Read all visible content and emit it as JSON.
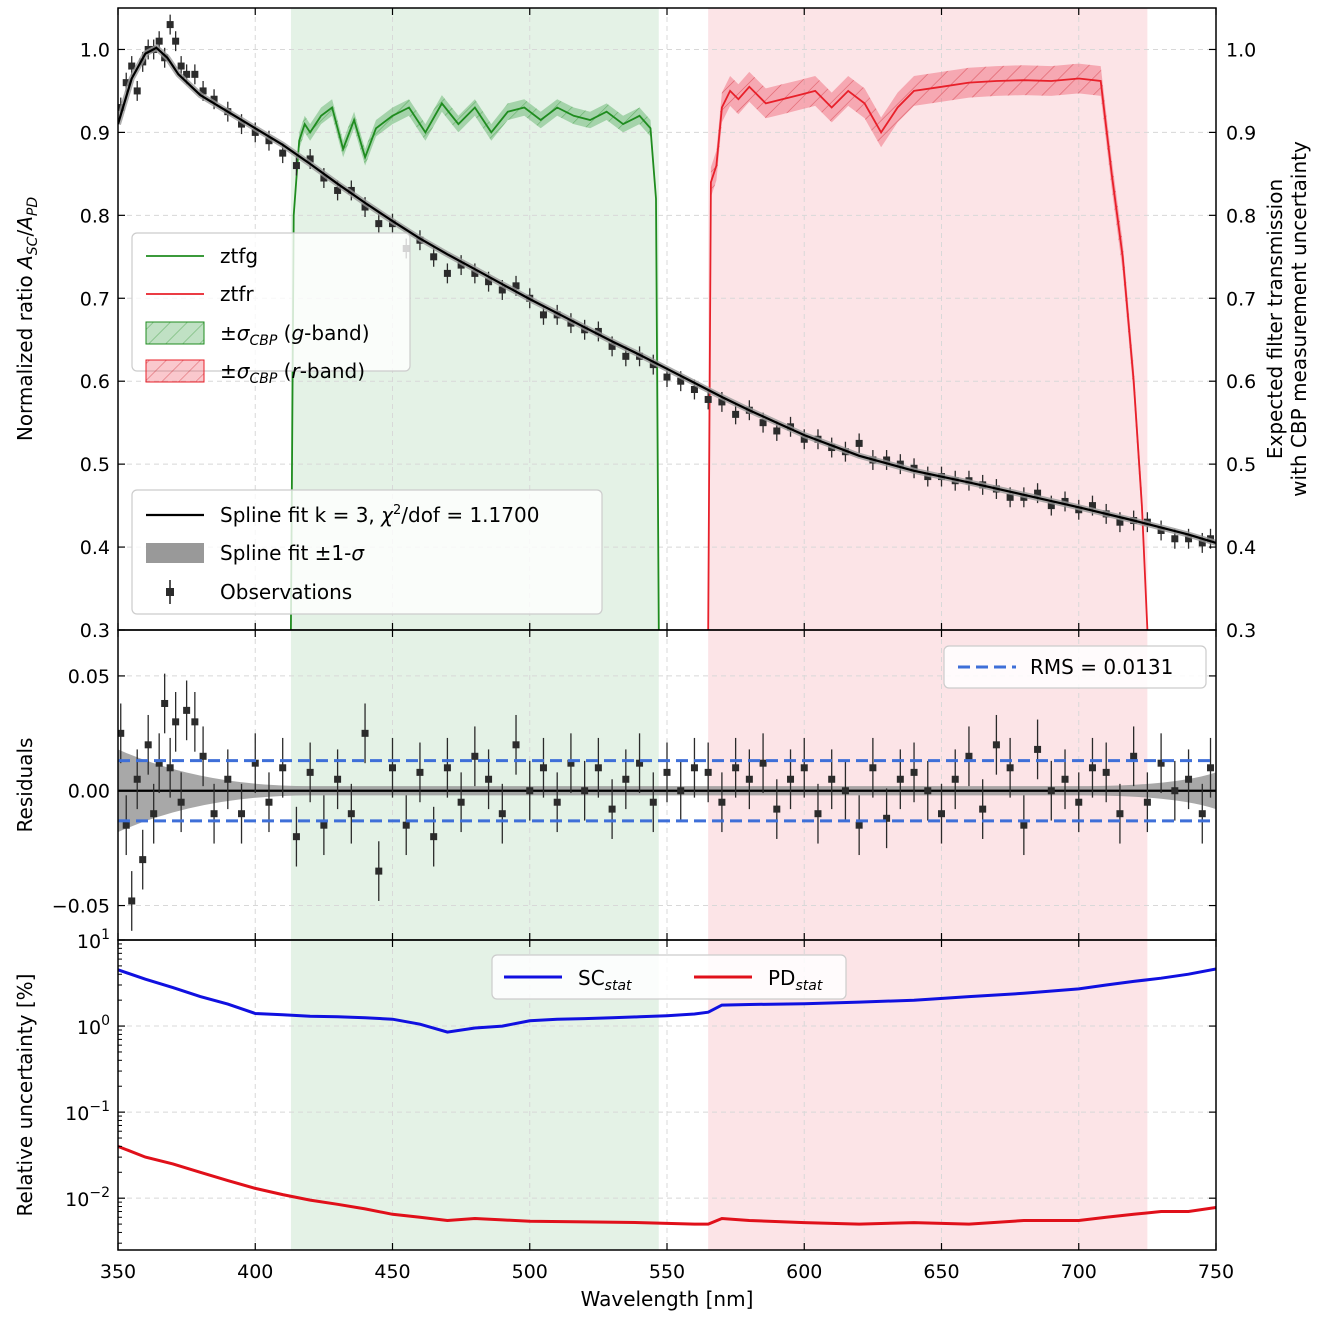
{
  "chart_data": [
    {
      "type": "scatter",
      "panel": "top",
      "ylabel": "Normalized ratio A_SC/A_PD",
      "ylabel_parts": [
        "Normalized ratio ",
        "A",
        "SC",
        "/",
        "A",
        "PD"
      ],
      "y2label_lines": [
        "Expected filter transmission",
        "with CBP measurement uncertainty"
      ],
      "xlim": [
        350,
        750
      ],
      "ylim": [
        0.3,
        1.05
      ],
      "y2lim": [
        0.3,
        1.05
      ],
      "yticks": [
        "0.3",
        "0.4",
        "0.5",
        "0.6",
        "0.7",
        "0.8",
        "0.9",
        "1.0"
      ],
      "y2ticks": [
        "0.3",
        "0.4",
        "0.5",
        "0.6",
        "0.7",
        "0.8",
        "0.9",
        "1.0"
      ],
      "grid": true,
      "colors": {
        "ztfg": "#1f8c1f",
        "ztfr": "#e8202a",
        "g_fill": "#2e9a3a",
        "r_fill": "#f06070",
        "obs": "#2b2b2b",
        "fit": "#000000"
      },
      "fit_curve": {
        "x": [
          350,
          355,
          360,
          364,
          368,
          372,
          380,
          390,
          400,
          410,
          420,
          430,
          440,
          450,
          460,
          470,
          480,
          490,
          500,
          510,
          520,
          530,
          540,
          550,
          560,
          570,
          580,
          590,
          600,
          620,
          640,
          660,
          680,
          700,
          720,
          740,
          750
        ],
        "y": [
          0.91,
          0.965,
          0.995,
          1.002,
          0.99,
          0.97,
          0.945,
          0.925,
          0.905,
          0.885,
          0.862,
          0.838,
          0.815,
          0.793,
          0.772,
          0.753,
          0.735,
          0.717,
          0.699,
          0.682,
          0.665,
          0.648,
          0.632,
          0.615,
          0.598,
          0.581,
          0.565,
          0.55,
          0.535,
          0.51,
          0.492,
          0.478,
          0.463,
          0.448,
          0.432,
          0.415,
          0.405
        ]
      },
      "ztfg_curve": {
        "x": [
          413,
          414,
          416,
          418,
          420,
          424,
          428,
          432,
          436,
          440,
          444,
          450,
          456,
          462,
          468,
          474,
          480,
          486,
          492,
          498,
          504,
          510,
          516,
          522,
          528,
          534,
          540,
          544,
          546,
          547
        ],
        "y": [
          0.3,
          0.8,
          0.89,
          0.91,
          0.9,
          0.92,
          0.93,
          0.88,
          0.915,
          0.87,
          0.905,
          0.92,
          0.93,
          0.9,
          0.935,
          0.91,
          0.93,
          0.9,
          0.925,
          0.93,
          0.915,
          0.93,
          0.92,
          0.915,
          0.925,
          0.91,
          0.92,
          0.905,
          0.82,
          0.3
        ]
      },
      "ztfg_band": 0.01,
      "ztfr_curve": {
        "x": [
          565,
          566,
          568,
          570,
          573,
          576,
          580,
          586,
          592,
          598,
          604,
          610,
          616,
          622,
          628,
          634,
          640,
          650,
          660,
          670,
          680,
          690,
          700,
          708,
          712,
          716,
          720,
          723,
          725
        ],
        "y": [
          0.3,
          0.84,
          0.86,
          0.93,
          0.95,
          0.94,
          0.955,
          0.935,
          0.94,
          0.945,
          0.95,
          0.93,
          0.95,
          0.935,
          0.9,
          0.93,
          0.95,
          0.955,
          0.96,
          0.962,
          0.963,
          0.962,
          0.965,
          0.962,
          0.85,
          0.75,
          0.6,
          0.45,
          0.3
        ]
      },
      "ztfr_band": 0.018,
      "g_band_region": [
        413,
        547
      ],
      "r_band_region": [
        565,
        725
      ],
      "observations": {
        "x": [
          351,
          353,
          355,
          357,
          359,
          361,
          363,
          365,
          367,
          369,
          371,
          373,
          375,
          378,
          381,
          385,
          390,
          395,
          400,
          405,
          410,
          415,
          420,
          425,
          430,
          435,
          440,
          445,
          450,
          455,
          460,
          465,
          470,
          475,
          480,
          485,
          490,
          495,
          500,
          505,
          510,
          515,
          520,
          525,
          530,
          535,
          540,
          545,
          550,
          555,
          560,
          565,
          570,
          575,
          580,
          585,
          590,
          595,
          600,
          605,
          610,
          615,
          620,
          625,
          630,
          635,
          640,
          645,
          650,
          655,
          660,
          665,
          670,
          675,
          680,
          685,
          690,
          695,
          700,
          705,
          710,
          715,
          720,
          725,
          730,
          735,
          740,
          745,
          748
        ],
        "y": [
          0.93,
          0.96,
          0.98,
          0.95,
          0.985,
          1.0,
          1.0,
          1.01,
          0.99,
          1.03,
          1.01,
          0.98,
          0.97,
          0.97,
          0.95,
          0.94,
          0.925,
          0.91,
          0.9,
          0.89,
          0.875,
          0.86,
          0.868,
          0.845,
          0.83,
          0.83,
          0.81,
          0.79,
          0.79,
          0.76,
          0.77,
          0.75,
          0.73,
          0.74,
          0.73,
          0.72,
          0.71,
          0.715,
          0.7,
          0.68,
          0.68,
          0.67,
          0.662,
          0.66,
          0.642,
          0.63,
          0.63,
          0.62,
          0.605,
          0.6,
          0.59,
          0.578,
          0.575,
          0.56,
          0.565,
          0.55,
          0.54,
          0.545,
          0.53,
          0.53,
          0.52,
          0.515,
          0.525,
          0.505,
          0.505,
          0.5,
          0.495,
          0.485,
          0.485,
          0.48,
          0.48,
          0.475,
          0.47,
          0.46,
          0.46,
          0.465,
          0.45,
          0.455,
          0.445,
          0.45,
          0.44,
          0.43,
          0.432,
          0.43,
          0.42,
          0.41,
          0.41,
          0.405,
          0.41
        ],
        "err": 0.012
      },
      "legend_filters": [
        {
          "label": "ztfg",
          "kind": "line",
          "color": "#1f8c1f"
        },
        {
          "label": "ztfr",
          "kind": "line",
          "color": "#e8202a"
        },
        {
          "label": "±σCBP (g-band)",
          "kind": "patch",
          "color": "#2e9a3a"
        },
        {
          "label": "±σCBP (r-band)",
          "kind": "patch",
          "color": "#f06070"
        }
      ],
      "legend_fit": [
        {
          "label": "Spline fit k = 3, χ²/dof = 1.1700",
          "kind": "line",
          "color": "#000000"
        },
        {
          "label": "Spline fit ±1-σ",
          "kind": "patch",
          "color": "#999999"
        },
        {
          "label": "Observations",
          "kind": "marker",
          "color": "#2b2b2b"
        }
      ]
    },
    {
      "type": "scatter",
      "panel": "middle",
      "ylabel": "Residuals",
      "ylim": [
        -0.065,
        0.07
      ],
      "yticks": [
        "−0.05",
        "0.00",
        "0.05"
      ],
      "rms": 0.0131,
      "rms_label": "RMS = 0.0131",
      "rms_color": "#3e6fd8",
      "residuals": {
        "x": [
          351,
          353,
          355,
          357,
          359,
          361,
          363,
          365,
          367,
          369,
          371,
          373,
          375,
          378,
          381,
          385,
          390,
          395,
          400,
          405,
          410,
          415,
          420,
          425,
          430,
          435,
          440,
          445,
          450,
          455,
          460,
          465,
          470,
          475,
          480,
          485,
          490,
          495,
          500,
          505,
          510,
          515,
          520,
          525,
          530,
          535,
          540,
          545,
          550,
          555,
          560,
          565,
          570,
          575,
          580,
          585,
          590,
          595,
          600,
          605,
          610,
          615,
          620,
          625,
          630,
          635,
          640,
          645,
          650,
          655,
          660,
          665,
          670,
          675,
          680,
          685,
          690,
          695,
          700,
          705,
          710,
          715,
          720,
          725,
          730,
          735,
          740,
          745,
          748
        ],
        "y": [
          0.025,
          -0.015,
          -0.048,
          0.005,
          -0.03,
          0.02,
          -0.01,
          0.012,
          0.038,
          0.01,
          0.03,
          -0.005,
          0.035,
          0.03,
          0.015,
          -0.01,
          0.005,
          -0.01,
          0.012,
          -0.005,
          0.01,
          -0.02,
          0.008,
          -0.015,
          0.005,
          -0.01,
          0.025,
          -0.035,
          0.01,
          -0.015,
          0.008,
          -0.02,
          0.01,
          -0.005,
          0.015,
          0.005,
          -0.01,
          0.02,
          0.0,
          0.01,
          -0.005,
          0.012,
          0.0,
          0.01,
          -0.008,
          0.005,
          0.012,
          -0.005,
          0.008,
          0.0,
          0.01,
          0.008,
          -0.005,
          0.01,
          0.005,
          0.012,
          -0.008,
          0.005,
          0.01,
          -0.01,
          0.005,
          0.0,
          -0.015,
          0.01,
          -0.012,
          0.005,
          0.008,
          0.0,
          -0.01,
          0.005,
          0.015,
          -0.008,
          0.02,
          0.01,
          -0.015,
          0.018,
          0.0,
          0.005,
          -0.005,
          0.01,
          0.008,
          -0.01,
          0.015,
          -0.005,
          0.012,
          0.0,
          0.005,
          -0.01,
          0.01
        ],
        "err": 0.013
      }
    },
    {
      "type": "line",
      "panel": "bottom",
      "ylabel": "Relative uncertainty [%]",
      "xlabel": "Wavelength [nm]",
      "yscale": "log",
      "ylim": [
        0.0025,
        10
      ],
      "yticks_log": [
        1,
        0,
        -1,
        -2
      ],
      "xticks": [
        "350",
        "400",
        "450",
        "500",
        "550",
        "600",
        "650",
        "700",
        "750"
      ],
      "legend": [
        "SC",
        "PD"
      ],
      "legend_sub": "stat",
      "SC_stat": {
        "color": "#1010e0",
        "x": [
          350,
          360,
          370,
          380,
          390,
          400,
          410,
          420,
          430,
          440,
          450,
          460,
          470,
          480,
          490,
          500,
          510,
          520,
          530,
          540,
          550,
          560,
          565,
          570,
          580,
          600,
          620,
          640,
          660,
          680,
          700,
          710,
          720,
          730,
          740,
          750
        ],
        "y": [
          4.5,
          3.5,
          2.8,
          2.2,
          1.8,
          1.4,
          1.35,
          1.3,
          1.28,
          1.25,
          1.2,
          1.05,
          0.85,
          0.95,
          1.0,
          1.15,
          1.2,
          1.22,
          1.25,
          1.28,
          1.32,
          1.38,
          1.45,
          1.75,
          1.78,
          1.82,
          1.9,
          2.0,
          2.2,
          2.4,
          2.7,
          3.0,
          3.3,
          3.6,
          4.0,
          4.6
        ]
      },
      "PD_stat": {
        "color": "#e0101a",
        "x": [
          350,
          360,
          370,
          380,
          390,
          400,
          410,
          420,
          430,
          440,
          450,
          460,
          470,
          480,
          490,
          500,
          520,
          540,
          560,
          565,
          570,
          580,
          600,
          620,
          640,
          660,
          680,
          700,
          710,
          720,
          730,
          740,
          750
        ],
        "y": [
          0.04,
          0.03,
          0.025,
          0.02,
          0.016,
          0.013,
          0.011,
          0.0095,
          0.0085,
          0.0075,
          0.0065,
          0.006,
          0.0055,
          0.0058,
          0.0056,
          0.0054,
          0.0053,
          0.0052,
          0.005,
          0.005,
          0.0058,
          0.0055,
          0.0052,
          0.005,
          0.0052,
          0.005,
          0.0055,
          0.0055,
          0.006,
          0.0065,
          0.007,
          0.007,
          0.0078
        ]
      }
    }
  ]
}
